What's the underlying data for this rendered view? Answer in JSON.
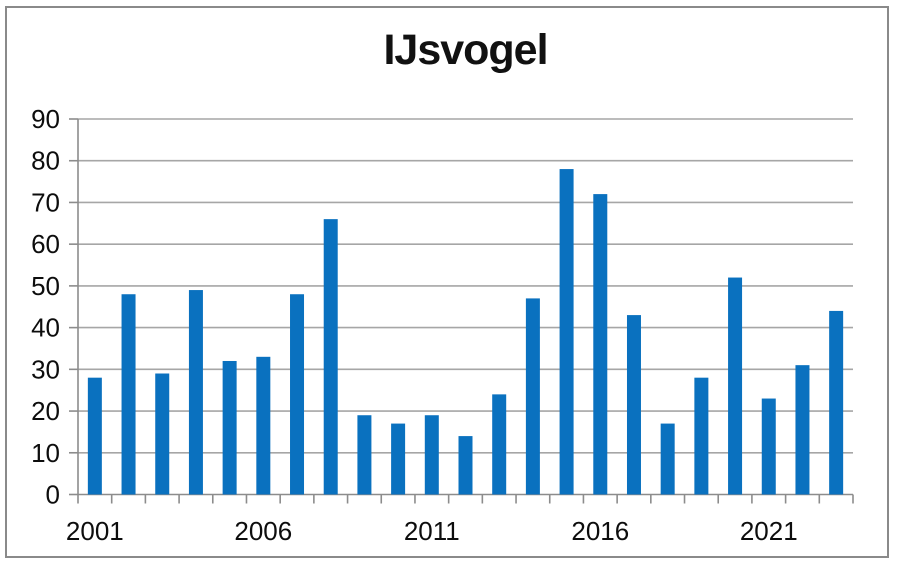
{
  "chart_data": {
    "type": "bar",
    "title": "IJsvogel",
    "categories": [
      2001,
      2002,
      2003,
      2004,
      2005,
      2006,
      2007,
      2008,
      2009,
      2010,
      2011,
      2012,
      2013,
      2014,
      2015,
      2016,
      2017,
      2018,
      2019,
      2020,
      2021,
      2022,
      2023
    ],
    "values": [
      28,
      48,
      29,
      49,
      32,
      33,
      48,
      66,
      19,
      17,
      19,
      14,
      24,
      47,
      78,
      72,
      43,
      17,
      28,
      52,
      23,
      31,
      44
    ],
    "xlabel": "",
    "ylabel": "",
    "ylim": [
      0,
      90
    ],
    "yticks": [
      0,
      10,
      20,
      30,
      40,
      50,
      60,
      70,
      80,
      90
    ],
    "xtick_label_indices": [
      0,
      5,
      10,
      15,
      20
    ],
    "xtick_labels": [
      "2001",
      "2006",
      "2011",
      "2016",
      "2021"
    ],
    "grid": "horizontal",
    "legend": "none",
    "colors": {
      "bar_fill": "#0a71bf",
      "gridline": "#a6a6a6",
      "axis": "#8c8c8c",
      "frame_border": "#8a8a8a",
      "text": "#0d0d0d",
      "background": "#ffffff"
    }
  }
}
